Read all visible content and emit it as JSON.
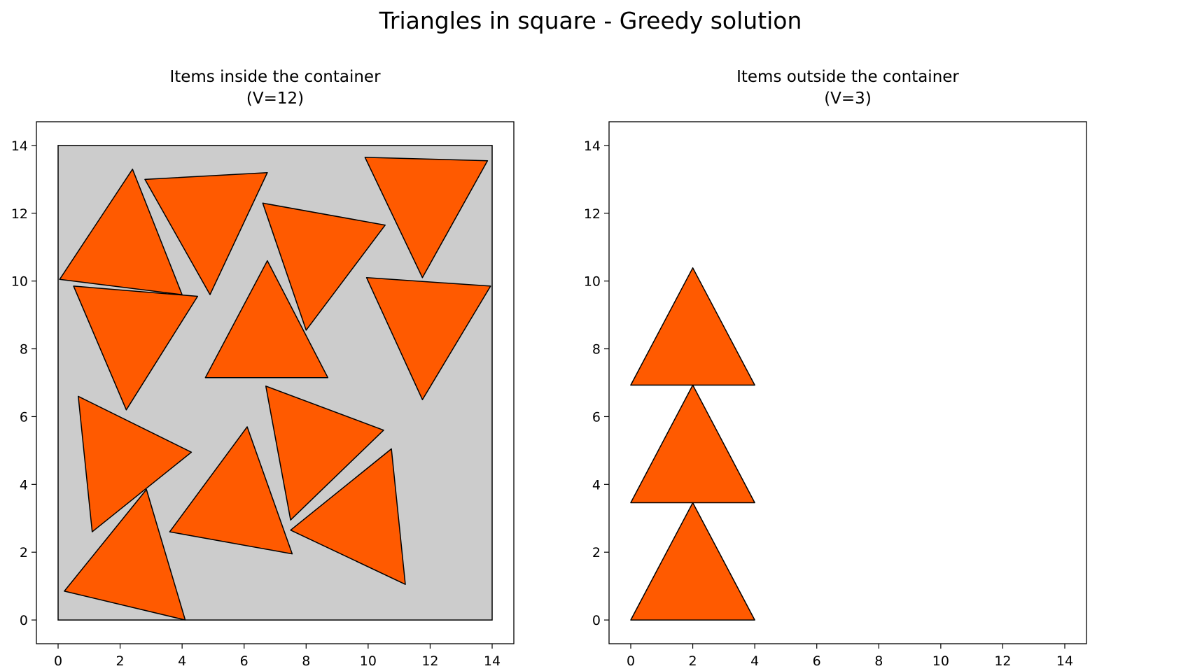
{
  "figure": {
    "title": "Triangles in square - Greedy solution"
  },
  "colors": {
    "item_fill": "#ff5a00",
    "item_edge": "#000000",
    "container_fill": "#cccccc",
    "container_edge": "#000000"
  },
  "chart_data": [
    {
      "type": "polygon-packing",
      "title": "Items inside the container",
      "subtitle": "(V=12)",
      "xlim": [
        -0.7,
        14.7
      ],
      "ylim": [
        -0.7,
        14.7
      ],
      "xticks": [
        0,
        2,
        4,
        6,
        8,
        10,
        12,
        14
      ],
      "yticks": [
        0,
        2,
        4,
        6,
        8,
        10,
        12,
        14
      ],
      "container": [
        [
          0,
          0
        ],
        [
          14,
          0
        ],
        [
          14,
          14
        ],
        [
          0,
          14
        ]
      ],
      "items": [
        [
          [
            0.05,
            10.05
          ],
          [
            2.4,
            13.3
          ],
          [
            4.0,
            9.6
          ]
        ],
        [
          [
            2.8,
            13.0
          ],
          [
            6.75,
            13.2
          ],
          [
            4.9,
            9.6
          ]
        ],
        [
          [
            9.9,
            13.65
          ],
          [
            13.85,
            13.55
          ],
          [
            11.75,
            10.1
          ]
        ],
        [
          [
            6.6,
            12.3
          ],
          [
            10.55,
            11.65
          ],
          [
            8.0,
            8.55
          ]
        ],
        [
          [
            0.5,
            9.85
          ],
          [
            4.5,
            9.55
          ],
          [
            2.2,
            6.2
          ]
        ],
        [
          [
            6.75,
            10.6
          ],
          [
            4.75,
            7.15
          ],
          [
            8.7,
            7.15
          ]
        ],
        [
          [
            9.95,
            10.1
          ],
          [
            13.95,
            9.85
          ],
          [
            11.75,
            6.5
          ]
        ],
        [
          [
            0.65,
            6.6
          ],
          [
            4.3,
            4.95
          ],
          [
            1.1,
            2.6
          ]
        ],
        [
          [
            6.7,
            6.9
          ],
          [
            10.5,
            5.6
          ],
          [
            7.5,
            2.95
          ]
        ],
        [
          [
            6.1,
            5.7
          ],
          [
            3.6,
            2.6
          ],
          [
            7.55,
            1.95
          ]
        ],
        [
          [
            10.75,
            5.05
          ],
          [
            7.5,
            2.65
          ],
          [
            11.2,
            1.05
          ]
        ],
        [
          [
            2.85,
            3.85
          ],
          [
            0.2,
            0.85
          ],
          [
            4.1,
            0.0
          ]
        ]
      ]
    },
    {
      "type": "polygon-packing",
      "title": "Items outside the container",
      "subtitle": "(V=3)",
      "xlim": [
        -0.7,
        14.7
      ],
      "ylim": [
        -0.7,
        14.7
      ],
      "xticks": [
        0,
        2,
        4,
        6,
        8,
        10,
        12,
        14
      ],
      "yticks": [
        0,
        2,
        4,
        6,
        8,
        10,
        12,
        14
      ],
      "container": [],
      "items": [
        [
          [
            0,
            0
          ],
          [
            4,
            0
          ],
          [
            2,
            3.46
          ]
        ],
        [
          [
            0,
            3.46
          ],
          [
            4,
            3.46
          ],
          [
            2,
            6.93
          ]
        ],
        [
          [
            0,
            6.93
          ],
          [
            4,
            6.93
          ],
          [
            2,
            10.39
          ]
        ]
      ]
    }
  ]
}
